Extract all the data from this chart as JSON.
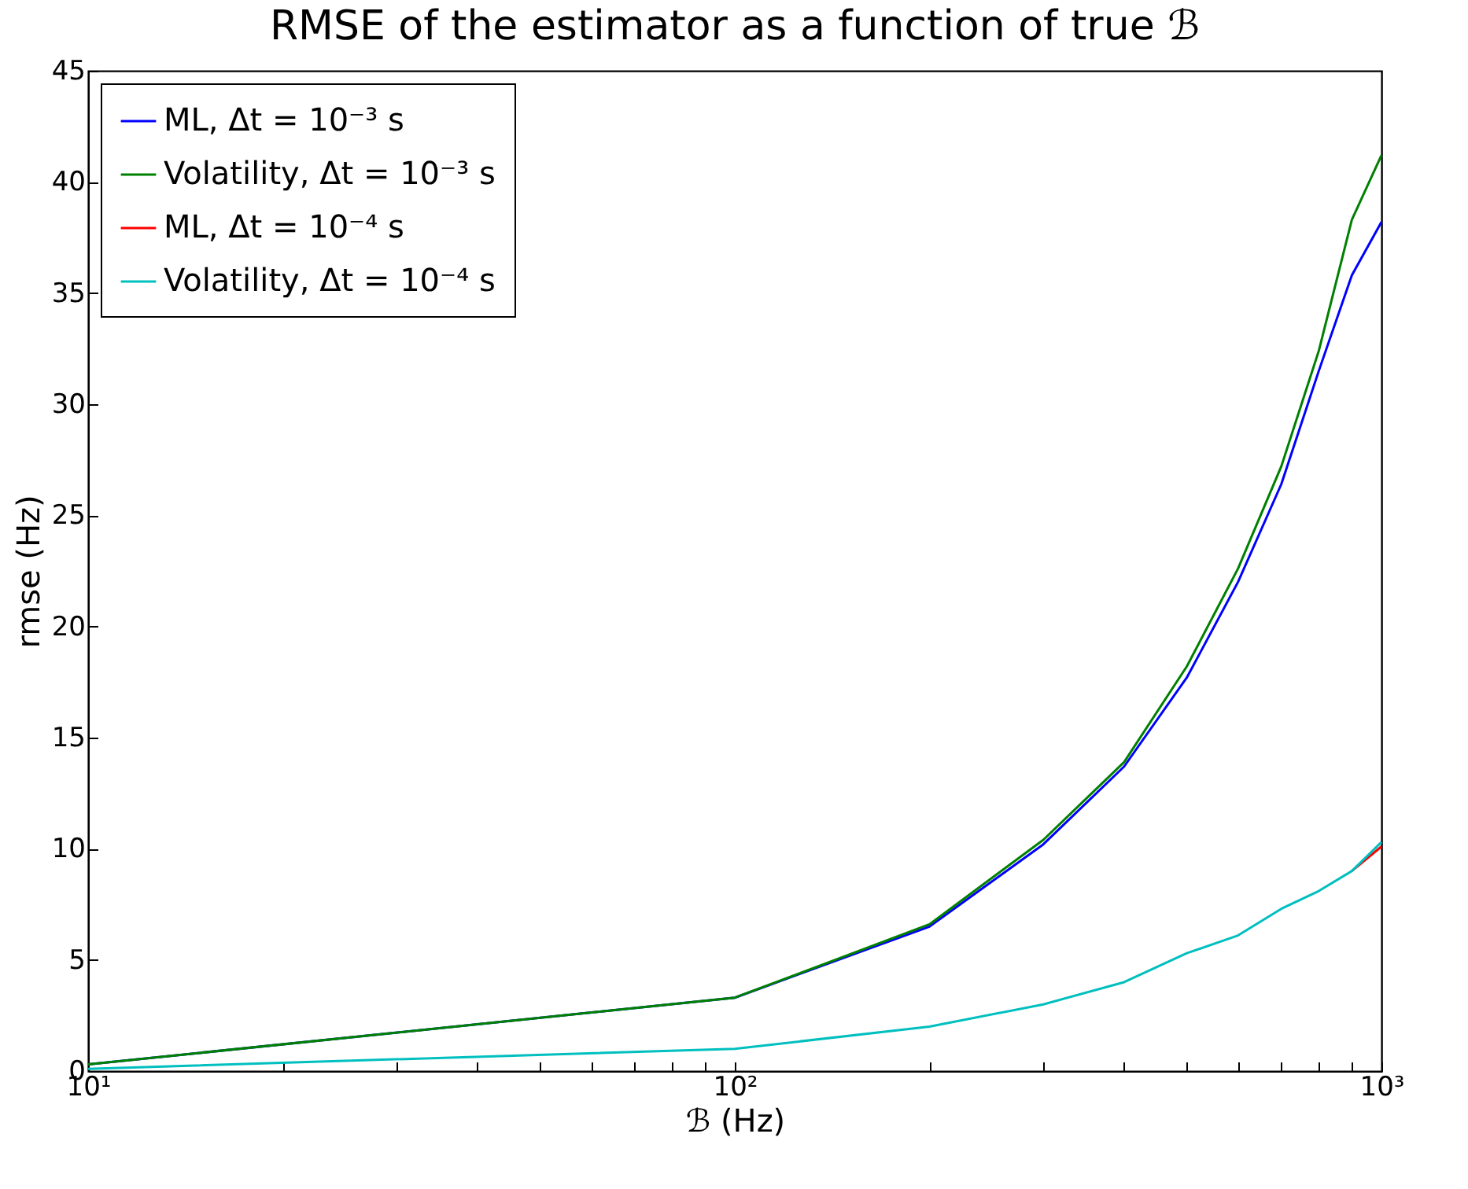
{
  "chart_data": {
    "type": "line",
    "title": "RMSE of the estimator as a function of true ℬ",
    "xlabel": "ℬ (Hz)",
    "ylabel": "rmse (Hz)",
    "x": [
      10,
      100,
      200,
      300,
      400,
      500,
      600,
      700,
      800,
      900,
      1000
    ],
    "series": [
      {
        "name": "ML, Δt = 10⁻³ s",
        "color": "#0000ff",
        "values": [
          0.3,
          3.3,
          6.5,
          10.2,
          13.7,
          17.7,
          22.0,
          26.4,
          31.5,
          35.8,
          38.2
        ]
      },
      {
        "name": "Volatility, Δt = 10⁻³ s",
        "color": "#008000",
        "values": [
          0.3,
          3.3,
          6.6,
          10.4,
          13.9,
          18.2,
          22.6,
          27.2,
          32.4,
          38.3,
          41.2
        ]
      },
      {
        "name": "ML, Δt = 10⁻⁴ s",
        "color": "#ff0000",
        "values": [
          null,
          null,
          null,
          null,
          null,
          null,
          null,
          null,
          null,
          9.0,
          10.1
        ]
      },
      {
        "name": "Volatility, Δt = 10⁻⁴ s",
        "color": "#00bfbf",
        "values": [
          0.1,
          1.0,
          2.0,
          3.0,
          4.0,
          5.3,
          6.1,
          7.3,
          8.1,
          9.0,
          10.3
        ]
      }
    ],
    "log": "x",
    "xlim": [
      10,
      1000
    ],
    "xticks": [
      {
        "value": 10,
        "label": "10¹"
      },
      {
        "value": 20,
        "label": null
      },
      {
        "value": 30,
        "label": null
      },
      {
        "value": 40,
        "label": null
      },
      {
        "value": 50,
        "label": null
      },
      {
        "value": 60,
        "label": null
      },
      {
        "value": 70,
        "label": null
      },
      {
        "value": 80,
        "label": null
      },
      {
        "value": 90,
        "label": null
      },
      {
        "value": 100,
        "label": "10²"
      },
      {
        "value": 200,
        "label": null
      },
      {
        "value": 300,
        "label": null
      },
      {
        "value": 400,
        "label": null
      },
      {
        "value": 500,
        "label": null
      },
      {
        "value": 600,
        "label": null
      },
      {
        "value": 700,
        "label": null
      },
      {
        "value": 800,
        "label": null
      },
      {
        "value": 900,
        "label": null
      },
      {
        "value": 1000,
        "label": "10³"
      }
    ],
    "ylim": [
      0,
      45
    ],
    "yticks": [
      0,
      5,
      10,
      15,
      20,
      25,
      30,
      35,
      40,
      45
    ],
    "grid": false,
    "legend": "top left",
    "line_style": "solid",
    "marker": "none"
  }
}
